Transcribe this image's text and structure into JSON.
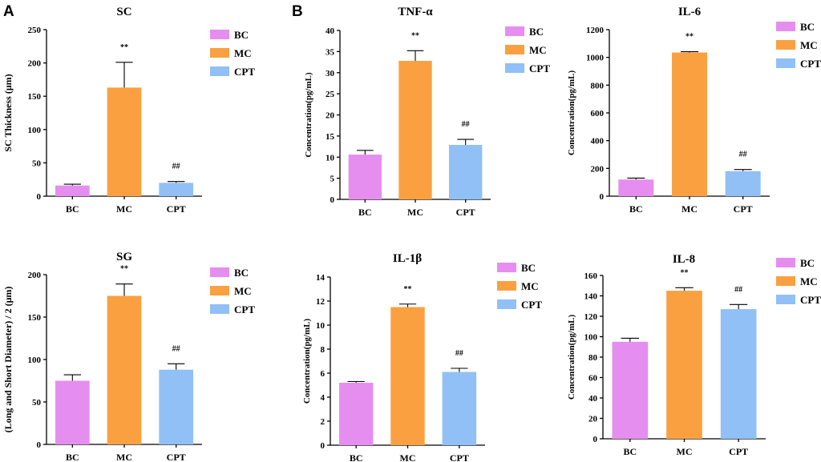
{
  "panel_labels": [
    "A",
    "B"
  ],
  "colors": {
    "BC": "#e58ef0",
    "MC": "#fba040",
    "CPT": "#90c0f5"
  },
  "chart_data": [
    {
      "id": "sc",
      "type": "bar",
      "title": "SC",
      "xlabel": "",
      "ylabel": "SC Thickness (μm)",
      "categories": [
        "BC",
        "MC",
        "CPT"
      ],
      "values": [
        16,
        163,
        20
      ],
      "errors": [
        2,
        38,
        2
      ],
      "ylim": [
        0,
        250
      ],
      "yticks": [
        0,
        50,
        100,
        150,
        200,
        250
      ],
      "significance": [
        "",
        "**",
        "##"
      ],
      "legend": [
        "BC",
        "MC",
        "CPT"
      ]
    },
    {
      "id": "tnf",
      "type": "bar",
      "title": "TNF-α",
      "xlabel": "",
      "ylabel": "Concentration(pg/mL)",
      "categories": [
        "BC",
        "MC",
        "CPT"
      ],
      "values": [
        10.6,
        32.8,
        12.9
      ],
      "errors": [
        1.0,
        2.4,
        1.3
      ],
      "ylim": [
        0,
        40
      ],
      "yticks": [
        0,
        5,
        10,
        15,
        20,
        25,
        30,
        35,
        40
      ],
      "significance": [
        "",
        "**",
        "##"
      ],
      "legend": [
        "BC",
        "MC",
        "CPT"
      ]
    },
    {
      "id": "il6",
      "type": "bar",
      "title": "IL-6",
      "xlabel": "",
      "ylabel": "Concentration(pg/mL)",
      "categories": [
        "BC",
        "MC",
        "CPT"
      ],
      "values": [
        120,
        1035,
        180
      ],
      "errors": [
        10,
        6,
        12
      ],
      "ylim": [
        0,
        1200
      ],
      "yticks": [
        0,
        200,
        400,
        600,
        800,
        1000,
        1200
      ],
      "significance": [
        "",
        "**",
        "##"
      ],
      "legend": [
        "BC",
        "MC",
        "CPT"
      ]
    },
    {
      "id": "sg",
      "type": "bar",
      "title": "SG",
      "xlabel": "",
      "ylabel": "(Long and Short Diameter) / 2 (μm)",
      "categories": [
        "BC",
        "MC",
        "CPT"
      ],
      "values": [
        75,
        175,
        88
      ],
      "errors": [
        7,
        14,
        7
      ],
      "ylim": [
        0,
        200
      ],
      "yticks": [
        0,
        50,
        100,
        150,
        200
      ],
      "significance": [
        "",
        "**",
        "##"
      ],
      "legend": [
        "BC",
        "MC",
        "CPT"
      ]
    },
    {
      "id": "il1b",
      "type": "bar",
      "title": "IL-1β",
      "xlabel": "",
      "ylabel": "Concentration(pg/mL)",
      "categories": [
        "BC",
        "MC",
        "CPT"
      ],
      "values": [
        5.2,
        11.5,
        6.1
      ],
      "errors": [
        0.1,
        0.25,
        0.3
      ],
      "ylim": [
        0,
        14
      ],
      "yticks": [
        0,
        2,
        4,
        6,
        8,
        10,
        12,
        14
      ],
      "significance": [
        "",
        "**",
        "##"
      ],
      "legend": [
        "BC",
        "MC",
        "CPT"
      ]
    },
    {
      "id": "il8",
      "type": "bar",
      "title": "IL-8",
      "xlabel": "",
      "ylabel": "Concentration(pg/mL)",
      "categories": [
        "BC",
        "MC",
        "CPT"
      ],
      "values": [
        95,
        145,
        127
      ],
      "errors": [
        3.5,
        3,
        4.5
      ],
      "ylim": [
        0,
        160
      ],
      "yticks": [
        0,
        20,
        40,
        60,
        80,
        100,
        120,
        140,
        160
      ],
      "significance": [
        "",
        "**",
        "##"
      ],
      "legend": [
        "BC",
        "MC",
        "CPT"
      ]
    }
  ]
}
